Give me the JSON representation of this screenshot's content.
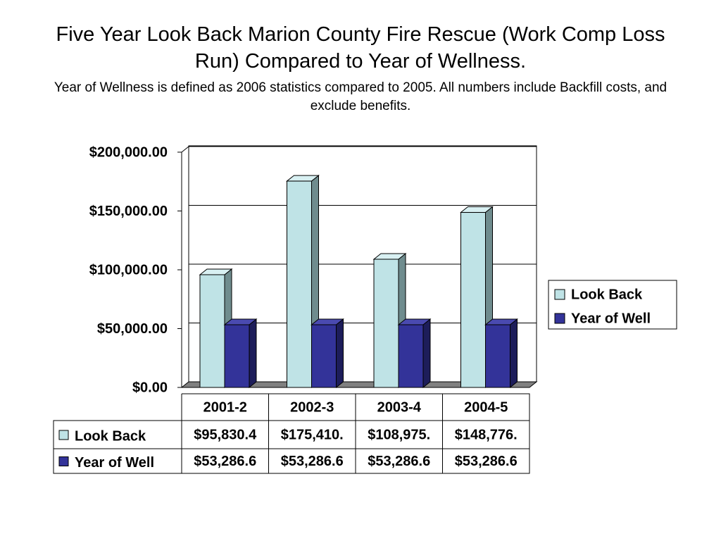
{
  "chart_data": {
    "type": "bar3d",
    "title": "Five Year Look Back Marion County Fire Rescue (Work Comp Loss Run) Compared to Year of Wellness.",
    "subtitle": "Year of Wellness is defined as 2006 statistics compared to 2005. All numbers include Backfill costs, and exclude benefits.",
    "categories": [
      "2001-2",
      "2002-3",
      "2003-4",
      "2004-5"
    ],
    "series": [
      {
        "name": "Look Back",
        "color": "#bfe3e6",
        "values": [
          95830.4,
          175410,
          108975,
          148776
        ],
        "value_labels": [
          "$95,830.4",
          "$175,410.",
          "$108,975.",
          "$148,776."
        ]
      },
      {
        "name": "Year of Well",
        "color": "#333399",
        "values": [
          53286.6,
          53286.6,
          53286.6,
          53286.6
        ],
        "value_labels": [
          "$53,286.6",
          "$53,286.6",
          "$53,286.6",
          "$53,286.6"
        ]
      }
    ],
    "ylim": [
      0,
      200000
    ],
    "yticks": [
      {
        "value": 0,
        "label": "$0.00"
      },
      {
        "value": 50000,
        "label": "$50,000.00"
      },
      {
        "value": 100000,
        "label": "$100,000.00"
      },
      {
        "value": 150000,
        "label": "$150,000.00"
      },
      {
        "value": 200000,
        "label": "$200,000.00"
      }
    ],
    "grid": true
  }
}
